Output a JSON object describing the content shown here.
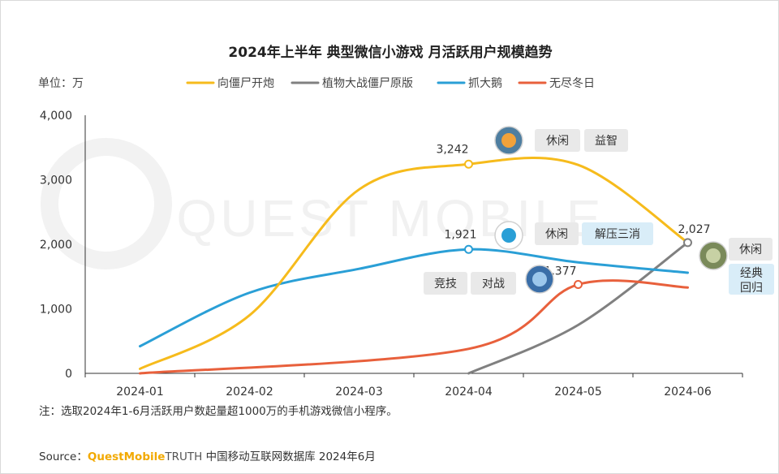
{
  "title": "2024年上半年 典型微信小游戏 月活跃用户规模趋势",
  "unit_label": "单位：万",
  "watermark": "QUEST MOBILE",
  "note": "注：选取2024年1-6月活跃用户数起量超1000万的手机游戏微信小程序。",
  "source": {
    "prefix": "Source：",
    "brand": "QuestMobile",
    "truth": "TRUTH",
    "rest": " 中国移动互联网数据库 2024年6月"
  },
  "colors": {
    "xiangjiang": "#f6bb1c",
    "zhiwu": "#808080",
    "zhua": "#2a9fd6",
    "wujin": "#e8603c",
    "tag_grey": "#e9e9e9",
    "tag_blue": "#d9edf8"
  },
  "chart_data": {
    "type": "line",
    "title": "2024年上半年 典型微信小游戏 月活跃用户规模趋势",
    "xlabel": "",
    "ylabel": "单位：万",
    "categories": [
      "2024-01",
      "2024-02",
      "2024-03",
      "2024-04",
      "2024-05",
      "2024-06"
    ],
    "ylim": [
      0,
      4000
    ],
    "yticks": [
      0,
      1000,
      2000,
      3000,
      4000
    ],
    "ytick_labels": [
      "0",
      "1,000",
      "2,000",
      "3,000",
      "4,000"
    ],
    "grid": false,
    "legend_position": "top",
    "series": [
      {
        "name": "向僵尸开炮",
        "color": "#f6bb1c",
        "values": [
          70,
          900,
          2850,
          3242,
          3230,
          2027
        ],
        "labeled_index": 3,
        "label": "3,242",
        "tags": [
          {
            "text": "休闲",
            "style": "grey"
          },
          {
            "text": "益智",
            "style": "grey"
          }
        ],
        "icon": "zombie-shooter-game-icon"
      },
      {
        "name": "植物大战僵尸原版",
        "color": "#808080",
        "values": [
          null,
          null,
          null,
          0,
          750,
          2027
        ],
        "labeled_index": 5,
        "label": "2,027",
        "tags": [
          {
            "text": "休闲",
            "style": "grey"
          },
          {
            "text": "经典回归",
            "style": "blue"
          }
        ],
        "icon": "plants-vs-zombies-game-icon"
      },
      {
        "name": "抓大鹅",
        "color": "#2a9fd6",
        "values": [
          420,
          1250,
          1620,
          1921,
          1720,
          1560
        ],
        "labeled_index": 3,
        "label": "1,921",
        "tags": [
          {
            "text": "休闲",
            "style": "grey"
          },
          {
            "text": "解压三消",
            "style": "blue"
          }
        ],
        "icon": "catch-goose-game-icon"
      },
      {
        "name": "无尽冬日",
        "color": "#e8603c",
        "values": [
          null,
          null,
          null,
          380,
          1377,
          1330
        ],
        "labeled_index": 4,
        "label": "1,377",
        "tags": [
          {
            "text": "竞技",
            "style": "grey"
          },
          {
            "text": "对战",
            "style": "grey"
          }
        ],
        "icon": "endless-winter-game-icon"
      }
    ]
  }
}
